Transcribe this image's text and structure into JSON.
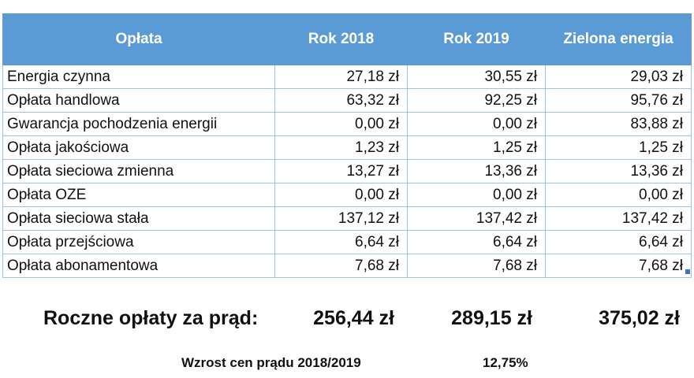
{
  "table": {
    "headers": [
      "Opłata",
      "Rok 2018",
      "Rok 2019",
      "Zielona energia"
    ],
    "rows": [
      {
        "name": "Energia czynna",
        "y2018": "27,18 zł",
        "y2019": "30,55 zł",
        "green": "29,03 zł"
      },
      {
        "name": "Opłata handlowa",
        "y2018": "63,32 zł",
        "y2019": "92,25 zł",
        "green": "95,76 zł"
      },
      {
        "name": "Gwarancja pochodzenia energii",
        "y2018": "0,00 zł",
        "y2019": "0,00 zł",
        "green": "83,88 zł"
      },
      {
        "name": "Opłata jakościowa",
        "y2018": "1,23 zł",
        "y2019": "1,25 zł",
        "green": "1,25 zł"
      },
      {
        "name": "Opłata sieciowa zmienna",
        "y2018": "13,27 zł",
        "y2019": "13,36 zł",
        "green": "13,36 zł"
      },
      {
        "name": "Opłata OZE",
        "y2018": "0,00 zł",
        "y2019": "0,00 zł",
        "green": "0,00 zł"
      },
      {
        "name": "Opłata sieciowa stała",
        "y2018": "137,12 zł",
        "y2019": "137,42 zł",
        "green": "137,42 zł"
      },
      {
        "name": "Opłata przejściowa",
        "y2018": "6,64 zł",
        "y2019": "6,64 zł",
        "green": "6,64 zł"
      },
      {
        "name": "Opłata abonamentowa",
        "y2018": "7,68 zł",
        "y2019": "7,68 zł",
        "green": "7,68 zł"
      }
    ]
  },
  "summary": {
    "label": "Roczne opłaty za prąd:",
    "y2018": "256,44 zł",
    "y2019": "289,15 zł",
    "green": "375,02 zł"
  },
  "increase": {
    "label": "Wzrost cen prądu 2018/2019",
    "value": "12,75%"
  },
  "colors": {
    "header_background": "#5b9bd5",
    "grid_border": "#9dc3e6"
  }
}
